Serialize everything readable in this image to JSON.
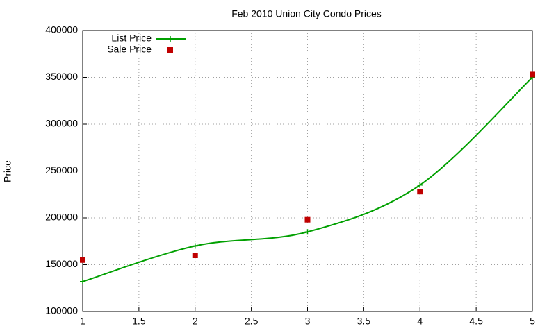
{
  "chart_data": {
    "type": "line",
    "title": "Feb 2010 Union City Condo Prices",
    "y_label": "Price",
    "x": [
      1,
      2,
      3,
      4,
      5
    ],
    "series": [
      {
        "name": "List Price",
        "color": "#00a000",
        "style": "line",
        "values": [
          132000,
          170000,
          185000,
          235000,
          350000
        ]
      },
      {
        "name": "Sale Price",
        "color": "#c00000",
        "style": "points",
        "values": [
          155000,
          160000,
          198000,
          228000,
          353000
        ]
      }
    ],
    "xlim": [
      1,
      5
    ],
    "xticks": [
      1,
      1.5,
      2,
      2.5,
      3,
      3.5,
      4,
      4.5,
      5
    ],
    "ylim": [
      100000,
      400000
    ],
    "yticks": [
      100000,
      150000,
      200000,
      250000,
      300000,
      350000,
      400000
    ],
    "grid": true,
    "legend": "top-left"
  }
}
